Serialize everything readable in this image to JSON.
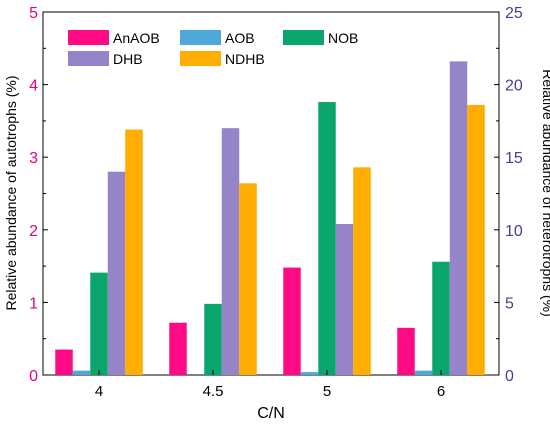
{
  "chart_data": {
    "type": "bar",
    "categories": [
      "4",
      "4.5",
      "5",
      "6"
    ],
    "xlabel": "C/N",
    "ylabel_left": "Relative abundance of autotrophs (%)",
    "ylabel_right": "Relative abundance of heterotrophs (%)",
    "ylim_left": [
      0,
      5
    ],
    "ylim_right": [
      0,
      25
    ],
    "yticks_left": [
      "0",
      "1",
      "2",
      "3",
      "4",
      "5"
    ],
    "yticks_right": [
      "0",
      "5",
      "10",
      "15",
      "20",
      "25"
    ],
    "grid": false,
    "legend_position": "top-left",
    "colors": {
      "left_axis": "#e8007a",
      "right_axis": "#4b3d8f",
      "frame": "#000000"
    },
    "series": [
      {
        "name": "AnAOB",
        "axis": "left",
        "color": "#ff0b86",
        "values": [
          0.35,
          0.72,
          1.48,
          0.65
        ]
      },
      {
        "name": "AOB",
        "axis": "left",
        "color": "#4fa8d8",
        "values": [
          0.06,
          0.0,
          0.04,
          0.06
        ]
      },
      {
        "name": "NOB",
        "axis": "left",
        "color": "#0aa66e",
        "values": [
          1.41,
          0.98,
          3.76,
          1.56
        ]
      },
      {
        "name": "DHB",
        "axis": "right",
        "color": "#9585c8",
        "values": [
          14.0,
          17.0,
          10.4,
          21.6
        ]
      },
      {
        "name": "NDHB",
        "axis": "right",
        "color": "#ffad00",
        "values": [
          16.9,
          13.2,
          14.3,
          18.6
        ]
      }
    ]
  }
}
